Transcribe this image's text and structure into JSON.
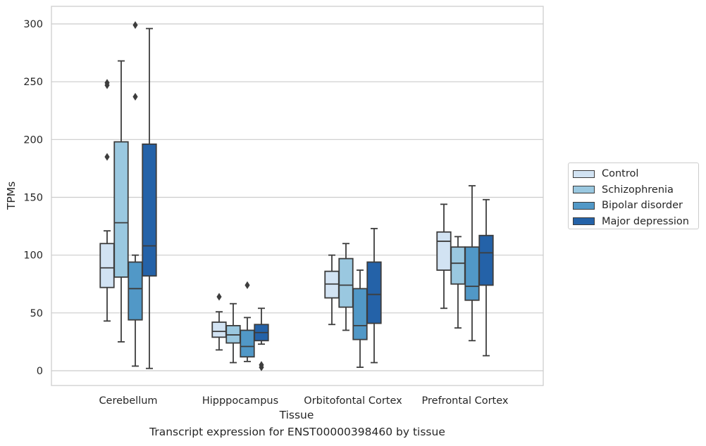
{
  "chart_data": {
    "type": "box",
    "xlabel": "Tissue",
    "ylabel": "TPMs",
    "ylim": [
      -12,
      315
    ],
    "yticks": [
      0,
      50,
      100,
      150,
      200,
      250,
      300
    ],
    "grid": "horizontal",
    "legend_position": "outside-right",
    "categories": [
      "Cerebellum",
      "Hipppocampus",
      "Orbitofontal Cortex",
      "Prefrontal Cortex"
    ],
    "series": [
      {
        "name": "Control",
        "color": "#d2e3f3",
        "boxes": [
          {
            "whislo": 43,
            "q1": 72,
            "med": 89,
            "q3": 110,
            "whishi": 121,
            "fliers": [
              185,
              247,
              249
            ]
          },
          {
            "whislo": 18,
            "q1": 29,
            "med": 34,
            "q3": 42,
            "whishi": 51,
            "fliers": [
              64
            ]
          },
          {
            "whislo": 40,
            "q1": 63,
            "med": 75,
            "q3": 86,
            "whishi": 100,
            "fliers": []
          },
          {
            "whislo": 54,
            "q1": 87,
            "med": 112,
            "q3": 120,
            "whishi": 144,
            "fliers": []
          }
        ]
      },
      {
        "name": "Schizophrenia",
        "color": "#9ac8e0",
        "boxes": [
          {
            "whislo": 25,
            "q1": 81,
            "med": 128,
            "q3": 198,
            "whishi": 268,
            "fliers": []
          },
          {
            "whislo": 7,
            "q1": 24,
            "med": 31,
            "q3": 39,
            "whishi": 58,
            "fliers": []
          },
          {
            "whislo": 35,
            "q1": 55,
            "med": 74,
            "q3": 97,
            "whishi": 110,
            "fliers": []
          },
          {
            "whislo": 37,
            "q1": 75,
            "med": 93,
            "q3": 107,
            "whishi": 116,
            "fliers": []
          }
        ]
      },
      {
        "name": "Bipolar disorder",
        "color": "#5198c7",
        "boxes": [
          {
            "whislo": 4,
            "q1": 44,
            "med": 71,
            "q3": 94,
            "whishi": 100,
            "fliers": [
              237,
              299
            ]
          },
          {
            "whislo": 8,
            "q1": 12,
            "med": 21,
            "q3": 35,
            "whishi": 46,
            "fliers": [
              74
            ]
          },
          {
            "whislo": 3,
            "q1": 27,
            "med": 39,
            "q3": 71,
            "whishi": 87,
            "fliers": []
          },
          {
            "whislo": 26,
            "q1": 61,
            "med": 73,
            "q3": 107,
            "whishi": 160,
            "fliers": []
          }
        ]
      },
      {
        "name": "Major depression",
        "color": "#2462a8",
        "boxes": [
          {
            "whislo": 2,
            "q1": 82,
            "med": 108,
            "q3": 196,
            "whishi": 296,
            "fliers": []
          },
          {
            "whislo": 23,
            "q1": 26,
            "med": 33,
            "q3": 40,
            "whishi": 54,
            "fliers": [
              3,
              5
            ]
          },
          {
            "whislo": 7,
            "q1": 41,
            "med": 66,
            "q3": 94,
            "whishi": 123,
            "fliers": []
          },
          {
            "whislo": 13,
            "q1": 74,
            "med": 102,
            "q3": 117,
            "whishi": 148,
            "fliers": []
          }
        ]
      }
    ]
  },
  "caption": "Transcript expression for ENST00000398460 by tissue"
}
